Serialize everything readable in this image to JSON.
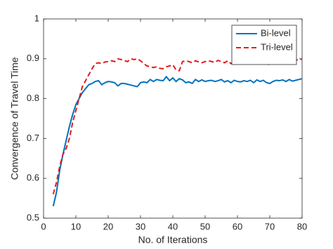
{
  "chart_data": {
    "type": "line",
    "xlabel": "No. of Iterations",
    "ylabel": "Convergence of Travel Time",
    "x": [
      3,
      4,
      5,
      6,
      7,
      8,
      9,
      10,
      11,
      12,
      13,
      14,
      15,
      16,
      17,
      18,
      19,
      20,
      21,
      22,
      23,
      24,
      25,
      26,
      27,
      28,
      29,
      30,
      31,
      32,
      33,
      34,
      35,
      36,
      37,
      38,
      39,
      40,
      41,
      42,
      43,
      44,
      45,
      46,
      47,
      48,
      49,
      50,
      51,
      52,
      53,
      54,
      55,
      56,
      57,
      58,
      59,
      60,
      61,
      62,
      63,
      64,
      65,
      66,
      67,
      68,
      69,
      70,
      71,
      72,
      73,
      74,
      75,
      76,
      77,
      78,
      79,
      80
    ],
    "series": [
      {
        "name": "Bi-level",
        "color": "#0072bd",
        "linestyle": "solid",
        "values": [
          0.53,
          0.565,
          0.62,
          0.66,
          0.695,
          0.73,
          0.76,
          0.785,
          0.8,
          0.815,
          0.825,
          0.835,
          0.838,
          0.843,
          0.845,
          0.835,
          0.84,
          0.843,
          0.842,
          0.84,
          0.832,
          0.838,
          0.838,
          0.836,
          0.834,
          0.832,
          0.83,
          0.84,
          0.842,
          0.84,
          0.848,
          0.843,
          0.848,
          0.846,
          0.845,
          0.855,
          0.845,
          0.852,
          0.843,
          0.85,
          0.847,
          0.84,
          0.842,
          0.838,
          0.848,
          0.843,
          0.847,
          0.843,
          0.845,
          0.846,
          0.843,
          0.845,
          0.848,
          0.842,
          0.845,
          0.84,
          0.846,
          0.843,
          0.842,
          0.845,
          0.843,
          0.846,
          0.84,
          0.847,
          0.843,
          0.846,
          0.84,
          0.838,
          0.843,
          0.846,
          0.845,
          0.847,
          0.843,
          0.848,
          0.844,
          0.846,
          0.848,
          0.85
        ]
      },
      {
        "name": "Tri-level",
        "color": "#e41a1c",
        "linestyle": "dashed",
        "values": [
          0.56,
          0.59,
          0.63,
          0.66,
          0.675,
          0.7,
          0.74,
          0.77,
          0.8,
          0.83,
          0.845,
          0.86,
          0.875,
          0.888,
          0.89,
          0.888,
          0.892,
          0.893,
          0.895,
          0.893,
          0.9,
          0.898,
          0.895,
          0.893,
          0.9,
          0.898,
          0.9,
          0.895,
          0.888,
          0.882,
          0.88,
          0.878,
          0.88,
          0.876,
          0.875,
          0.88,
          0.882,
          0.885,
          0.872,
          0.87,
          0.893,
          0.895,
          0.893,
          0.89,
          0.895,
          0.892,
          0.89,
          0.893,
          0.895,
          0.893,
          0.891,
          0.896,
          0.893,
          0.89,
          0.895,
          0.888,
          0.893,
          0.89,
          0.895,
          0.897,
          0.893,
          0.89,
          0.895,
          0.893,
          0.891,
          0.893,
          0.888,
          0.885,
          0.892,
          0.895,
          0.893,
          0.896,
          0.894,
          0.897,
          0.895,
          0.898,
          0.896,
          0.9
        ]
      }
    ],
    "xlim": [
      0,
      80
    ],
    "xticks": [
      0,
      10,
      20,
      30,
      40,
      50,
      60,
      70,
      80
    ],
    "ylim": [
      0.5,
      1
    ],
    "yticks": [
      0.5,
      0.6,
      0.7,
      0.8,
      0.9,
      1
    ],
    "grid": false,
    "legend": "northeast"
  }
}
